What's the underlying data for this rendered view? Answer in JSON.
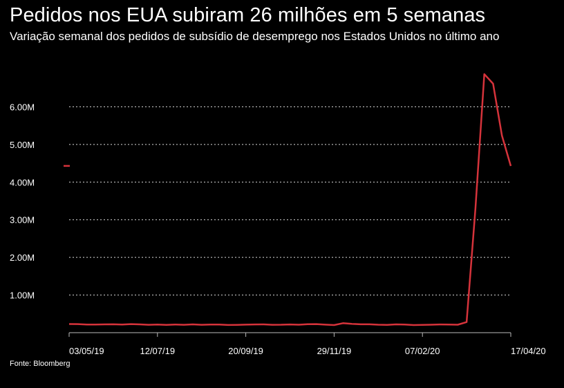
{
  "title": "Pedidos nos EUA subiram 26 milhões em 5 semanas",
  "subtitle": "Variação semanal dos pedidos de subsídio de desemprego nos Estados Unidos no último ano",
  "source": "Fonte: Bloomberg",
  "colors": {
    "background": "#000000",
    "line": "#d6333b",
    "grid": "#dddddd",
    "text": "#ffffff"
  },
  "chart_data": {
    "type": "line",
    "title": "Pedidos nos EUA subiram 26 milhões em 5 semanas",
    "xlabel": "",
    "ylabel": "",
    "ylim": [
      0,
      7000000
    ],
    "grid": true,
    "y_ticks": [
      {
        "value": 1000000,
        "label": "1.00M"
      },
      {
        "value": 2000000,
        "label": "2.00M"
      },
      {
        "value": 3000000,
        "label": "3.00M"
      },
      {
        "value": 4000000,
        "label": "4.00M"
      },
      {
        "value": 5000000,
        "label": "5.00M"
      },
      {
        "value": 6000000,
        "label": "6.00M"
      }
    ],
    "x_ticks": [
      {
        "value": "2019-05-03",
        "label": "03/05/19"
      },
      {
        "value": "2019-07-12",
        "label": "12/07/19"
      },
      {
        "value": "2019-09-20",
        "label": "20/09/19"
      },
      {
        "value": "2019-11-29",
        "label": "29/11/19"
      },
      {
        "value": "2020-02-07",
        "label": "07/02/20"
      },
      {
        "value": "2020-04-17",
        "label": "17/04/20"
      }
    ],
    "legend_marker": {
      "y": 4430000
    },
    "series": [
      {
        "x": [
          "2019-05-03",
          "2019-05-10",
          "2019-05-17",
          "2019-05-24",
          "2019-05-31",
          "2019-06-07",
          "2019-06-14",
          "2019-06-21",
          "2019-06-28",
          "2019-07-05",
          "2019-07-12",
          "2019-07-19",
          "2019-07-26",
          "2019-08-02",
          "2019-08-09",
          "2019-08-16",
          "2019-08-23",
          "2019-08-30",
          "2019-09-06",
          "2019-09-13",
          "2019-09-20",
          "2019-09-27",
          "2019-10-04",
          "2019-10-11",
          "2019-10-18",
          "2019-10-25",
          "2019-11-01",
          "2019-11-08",
          "2019-11-15",
          "2019-11-22",
          "2019-11-29",
          "2019-12-06",
          "2019-12-13",
          "2019-12-20",
          "2019-12-27",
          "2020-01-03",
          "2020-01-10",
          "2020-01-17",
          "2020-01-24",
          "2020-01-31",
          "2020-02-07",
          "2020-02-14",
          "2020-02-21",
          "2020-02-28",
          "2020-03-06",
          "2020-03-13",
          "2020-03-20",
          "2020-03-27",
          "2020-04-03",
          "2020-04-10",
          "2020-04-17"
        ],
        "y": [
          230000,
          228000,
          215000,
          215000,
          220000,
          222000,
          216000,
          227000,
          221000,
          209000,
          216000,
          206000,
          217000,
          209000,
          220000,
          209000,
          215000,
          217000,
          204000,
          208000,
          213000,
          219000,
          220000,
          210000,
          212000,
          218000,
          211000,
          225000,
          227000,
          213000,
          203000,
          252000,
          234000,
          222000,
          222000,
          212000,
          207000,
          220000,
          216000,
          202000,
          205000,
          211000,
          219000,
          216000,
          211000,
          282000,
          3307000,
          6867000,
          6615000,
          5237000,
          4427000
        ]
      }
    ]
  }
}
